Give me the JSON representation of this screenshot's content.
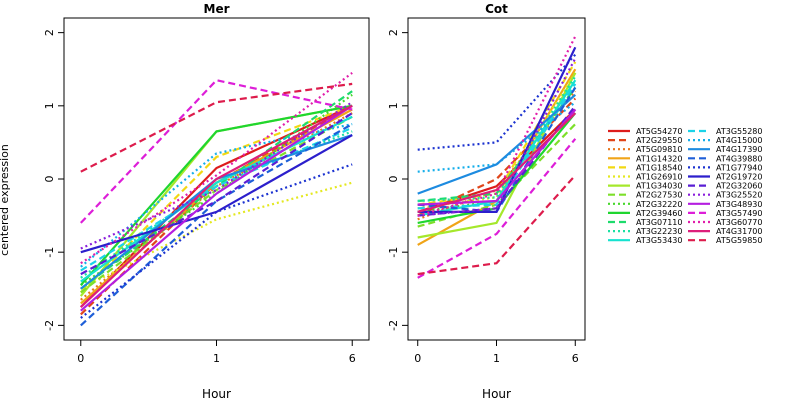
{
  "ylabel": "centered expression",
  "chart_data": [
    {
      "type": "line",
      "title": "Mer",
      "xlabel": "Hour",
      "ylabel": "centered expression",
      "x": [
        "0",
        "1",
        "6"
      ],
      "ylim": [
        -2.2,
        2.2
      ],
      "yticks": [
        -2,
        -1,
        0,
        1,
        2
      ],
      "series": [
        {
          "name": "AT5G54270",
          "values": [
            -1.75,
            0.15,
            1.0
          ]
        },
        {
          "name": "AT2G29550",
          "values": [
            -1.85,
            -0.05,
            1.0
          ]
        },
        {
          "name": "AT5G09810",
          "values": [
            -1.65,
            -0.1,
            0.9
          ]
        },
        {
          "name": "AT1G14320",
          "values": [
            -1.7,
            -0.05,
            0.95
          ]
        },
        {
          "name": "AT1G18540",
          "values": [
            -1.55,
            0.3,
            1.0
          ]
        },
        {
          "name": "AT1G26910",
          "values": [
            -1.5,
            -0.55,
            -0.05
          ]
        },
        {
          "name": "AT1G34030",
          "values": [
            -1.6,
            0.65,
            1.0
          ]
        },
        {
          "name": "AT2G27530",
          "values": [
            -1.55,
            -0.15,
            0.85
          ]
        },
        {
          "name": "AT2G32220",
          "values": [
            -1.45,
            -0.2,
            1.15
          ]
        },
        {
          "name": "AT2G39460",
          "values": [
            -1.45,
            0.65,
            1.0
          ]
        },
        {
          "name": "AT3G07110",
          "values": [
            -1.5,
            -0.1,
            1.2
          ]
        },
        {
          "name": "AT3G22230",
          "values": [
            -1.35,
            -0.05,
            0.65
          ]
        },
        {
          "name": "AT3G53430",
          "values": [
            -1.4,
            -0.05,
            0.85
          ]
        },
        {
          "name": "AT3G55280",
          "values": [
            -1.25,
            -0.1,
            0.7
          ]
        },
        {
          "name": "AT4G15000",
          "values": [
            -1.2,
            0.35,
            0.75
          ]
        },
        {
          "name": "AT4G17390",
          "values": [
            -1.5,
            0.0,
            0.6
          ]
        },
        {
          "name": "AT4G39880",
          "values": [
            -2.0,
            -0.3,
            0.75
          ]
        },
        {
          "name": "AT1G77940",
          "values": [
            -1.9,
            -0.45,
            0.2
          ]
        },
        {
          "name": "AT2G19720",
          "values": [
            -1.0,
            -0.45,
            0.6
          ]
        },
        {
          "name": "AT2G32060",
          "values": [
            -1.3,
            -0.3,
            0.9
          ]
        },
        {
          "name": "AT3G25520",
          "values": [
            -0.95,
            -0.15,
            1.05
          ]
        },
        {
          "name": "AT3G48930",
          "values": [
            -1.8,
            -0.2,
            1.0
          ]
        },
        {
          "name": "AT3G57490",
          "values": [
            -0.6,
            1.35,
            0.95
          ]
        },
        {
          "name": "AT3G60770",
          "values": [
            -1.15,
            0.05,
            1.45
          ]
        },
        {
          "name": "AT4G31700",
          "values": [
            -1.75,
            0.0,
            1.0
          ]
        },
        {
          "name": "AT5G59850",
          "values": [
            0.1,
            1.05,
            1.3
          ]
        }
      ]
    },
    {
      "type": "line",
      "title": "Cot",
      "xlabel": "Hour",
      "x": [
        "0",
        "1",
        "6"
      ],
      "ylim": [
        -2.2,
        2.2
      ],
      "yticks": [
        -2,
        -1,
        0,
        1,
        2
      ],
      "series": [
        {
          "name": "AT5G54270",
          "values": [
            -0.45,
            -0.1,
            0.95
          ]
        },
        {
          "name": "AT2G29550",
          "values": [
            -0.5,
            0.0,
            1.1
          ]
        },
        {
          "name": "AT5G09810",
          "values": [
            -0.55,
            -0.15,
            1.2
          ]
        },
        {
          "name": "AT1G14320",
          "values": [
            -0.9,
            -0.3,
            1.5
          ]
        },
        {
          "name": "AT1G18540",
          "values": [
            -0.35,
            -0.2,
            1.6
          ]
        },
        {
          "name": "AT1G26910",
          "values": [
            -0.4,
            -0.25,
            1.45
          ]
        },
        {
          "name": "AT1G34030",
          "values": [
            -0.8,
            -0.6,
            1.45
          ]
        },
        {
          "name": "AT2G27530",
          "values": [
            -0.65,
            -0.35,
            0.75
          ]
        },
        {
          "name": "AT2G32220",
          "values": [
            -0.45,
            -0.3,
            0.95
          ]
        },
        {
          "name": "AT2G39460",
          "values": [
            -0.6,
            -0.4,
            0.9
          ]
        },
        {
          "name": "AT3G07110",
          "values": [
            -0.3,
            -0.2,
            1.25
          ]
        },
        {
          "name": "AT3G22230",
          "values": [
            -0.3,
            -0.25,
            1.4
          ]
        },
        {
          "name": "AT3G53430",
          "values": [
            -0.5,
            -0.3,
            1.35
          ]
        },
        {
          "name": "AT3G55280",
          "values": [
            -0.4,
            -0.35,
            1.3
          ]
        },
        {
          "name": "AT4G15000",
          "values": [
            0.1,
            0.2,
            1.05
          ]
        },
        {
          "name": "AT4G17390",
          "values": [
            -0.2,
            0.2,
            1.15
          ]
        },
        {
          "name": "AT4G39880",
          "values": [
            -0.35,
            -0.45,
            1.25
          ]
        },
        {
          "name": "AT1G77940",
          "values": [
            0.4,
            0.5,
            1.7
          ]
        },
        {
          "name": "AT2G19720",
          "values": [
            -0.45,
            -0.45,
            1.8
          ]
        },
        {
          "name": "AT2G32060",
          "values": [
            -0.5,
            -0.4,
            1.0
          ]
        },
        {
          "name": "AT3G25520",
          "values": [
            -0.5,
            -0.4,
            1.65
          ]
        },
        {
          "name": "AT3G48930",
          "values": [
            -0.35,
            -0.3,
            0.95
          ]
        },
        {
          "name": "AT3G57490",
          "values": [
            -1.35,
            -0.75,
            0.55
          ]
        },
        {
          "name": "AT3G60770",
          "values": [
            -0.5,
            -0.2,
            1.95
          ]
        },
        {
          "name": "AT4G31700",
          "values": [
            -0.45,
            -0.15,
            0.9
          ]
        },
        {
          "name": "AT5G59850",
          "values": [
            -1.3,
            -1.15,
            0.05
          ]
        }
      ]
    }
  ],
  "legend": [
    {
      "name": "AT5G54270",
      "color": "#dd1c1c",
      "dash": "solid"
    },
    {
      "name": "AT2G29550",
      "color": "#e0451a",
      "dash": "dashed"
    },
    {
      "name": "AT5G09810",
      "color": "#e8761b",
      "dash": "dotted"
    },
    {
      "name": "AT1G14320",
      "color": "#f0a418",
      "dash": "solid"
    },
    {
      "name": "AT1G18540",
      "color": "#f2d813",
      "dash": "dashed"
    },
    {
      "name": "AT1G26910",
      "color": "#e4e821",
      "dash": "dotted"
    },
    {
      "name": "AT1G34030",
      "color": "#a5e82b",
      "dash": "solid"
    },
    {
      "name": "AT2G27530",
      "color": "#7ddf2a",
      "dash": "dashed"
    },
    {
      "name": "AT2G32220",
      "color": "#47d82c",
      "dash": "dotted"
    },
    {
      "name": "AT2G39460",
      "color": "#1fd62f",
      "dash": "solid"
    },
    {
      "name": "AT3G07110",
      "color": "#1ddb6c",
      "dash": "dashed"
    },
    {
      "name": "AT3G22230",
      "color": "#1be0a3",
      "dash": "dotted"
    },
    {
      "name": "AT3G53430",
      "color": "#16e2cf",
      "dash": "solid"
    },
    {
      "name": "AT3G55280",
      "color": "#1bd3e8",
      "dash": "dashed"
    },
    {
      "name": "AT4G15000",
      "color": "#15aeea",
      "dash": "dotted"
    },
    {
      "name": "AT4G17390",
      "color": "#1d8be0",
      "dash": "solid"
    },
    {
      "name": "AT4G39880",
      "color": "#1e5fd8",
      "dash": "dashed"
    },
    {
      "name": "AT1G77940",
      "color": "#1c33d0",
      "dash": "dotted"
    },
    {
      "name": "AT2G19720",
      "color": "#2c1fcc",
      "dash": "solid"
    },
    {
      "name": "AT2G32060",
      "color": "#5a1ed4",
      "dash": "dashed"
    },
    {
      "name": "AT3G25520",
      "color": "#8a1edb",
      "dash": "dotted"
    },
    {
      "name": "AT3G48930",
      "color": "#b51ee0",
      "dash": "solid"
    },
    {
      "name": "AT3G57490",
      "color": "#dd1ed8",
      "dash": "dashed"
    },
    {
      "name": "AT3G60770",
      "color": "#e01eaa",
      "dash": "dotted"
    },
    {
      "name": "AT4G31700",
      "color": "#dd1e7a",
      "dash": "solid"
    },
    {
      "name": "AT5G59850",
      "color": "#dd1c4c",
      "dash": "dashed"
    }
  ]
}
